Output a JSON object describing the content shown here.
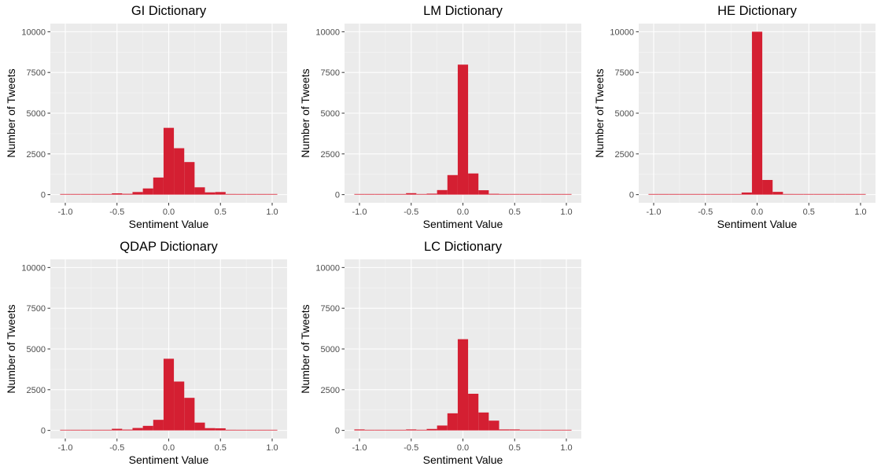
{
  "chart_data": [
    {
      "type": "bar",
      "title": "GI Dictionary",
      "xlabel": "Sentiment Value",
      "ylabel": "Number of Tweets",
      "xlim": [
        -1.0,
        1.0
      ],
      "ylim": [
        0,
        10000
      ],
      "xticks": [
        "-1.0",
        "-0.5",
        "0.0",
        "0.5",
        "1.0"
      ],
      "yticks": [
        "0",
        "2500",
        "5000",
        "7500",
        "10000"
      ],
      "bin_width": 0.1,
      "bins": [
        -1.0,
        -0.9,
        -0.8,
        -0.7,
        -0.6,
        -0.5,
        -0.4,
        -0.3,
        -0.2,
        -0.1,
        0.0,
        0.1,
        0.2,
        0.3,
        0.4,
        0.5,
        0.6,
        0.7,
        0.8,
        0.9,
        1.0
      ],
      "values": [
        20,
        5,
        5,
        10,
        20,
        80,
        50,
        160,
        380,
        1050,
        4100,
        2850,
        2000,
        450,
        140,
        160,
        40,
        15,
        10,
        10,
        30
      ],
      "grid": true,
      "color": "#D41F32"
    },
    {
      "type": "bar",
      "title": "LM Dictionary",
      "xlabel": "Sentiment Value",
      "ylabel": "Number of Tweets",
      "xlim": [
        -1.0,
        1.0
      ],
      "ylim": [
        0,
        10000
      ],
      "xticks": [
        "-1.0",
        "-0.5",
        "0.0",
        "0.5",
        "1.0"
      ],
      "yticks": [
        "0",
        "2500",
        "5000",
        "7500",
        "10000"
      ],
      "bin_width": 0.1,
      "bins": [
        -1.0,
        -0.9,
        -0.8,
        -0.7,
        -0.6,
        -0.5,
        -0.4,
        -0.3,
        -0.2,
        -0.1,
        0.0,
        0.1,
        0.2,
        0.3,
        0.4,
        0.5,
        0.6,
        0.7,
        0.8,
        0.9,
        1.0
      ],
      "values": [
        10,
        5,
        5,
        5,
        10,
        90,
        30,
        60,
        280,
        1200,
        7980,
        1300,
        270,
        50,
        20,
        40,
        15,
        5,
        5,
        5,
        10
      ],
      "grid": true,
      "color": "#D41F32"
    },
    {
      "type": "bar",
      "title": "HE Dictionary",
      "xlabel": "Sentiment Value",
      "ylabel": "Number of Tweets",
      "xlim": [
        -1.0,
        1.0
      ],
      "ylim": [
        0,
        10000
      ],
      "xticks": [
        "-1.0",
        "-0.5",
        "0.0",
        "0.5",
        "1.0"
      ],
      "yticks": [
        "0",
        "2500",
        "5000",
        "7500",
        "10000"
      ],
      "bin_width": 0.1,
      "bins": [
        -1.0,
        -0.9,
        -0.8,
        -0.7,
        -0.6,
        -0.5,
        -0.4,
        -0.3,
        -0.2,
        -0.1,
        0.0,
        0.1,
        0.2,
        0.3,
        0.4,
        0.5,
        0.6,
        0.7,
        0.8,
        0.9,
        1.0
      ],
      "values": [
        5,
        5,
        5,
        5,
        5,
        10,
        5,
        10,
        20,
        130,
        10000,
        900,
        170,
        40,
        10,
        15,
        5,
        5,
        5,
        5,
        5
      ],
      "grid": true,
      "color": "#D41F32"
    },
    {
      "type": "bar",
      "title": "QDAP Dictionary",
      "xlabel": "Sentiment Value",
      "ylabel": "Number of Tweets",
      "xlim": [
        -1.0,
        1.0
      ],
      "ylim": [
        0,
        10000
      ],
      "xticks": [
        "-1.0",
        "-0.5",
        "0.0",
        "0.5",
        "1.0"
      ],
      "yticks": [
        "0",
        "2500",
        "5000",
        "7500",
        "10000"
      ],
      "bin_width": 0.1,
      "bins": [
        -1.0,
        -0.9,
        -0.8,
        -0.7,
        -0.6,
        -0.5,
        -0.4,
        -0.3,
        -0.2,
        -0.1,
        0.0,
        0.1,
        0.2,
        0.3,
        0.4,
        0.5,
        0.6,
        0.7,
        0.8,
        0.9,
        1.0
      ],
      "values": [
        20,
        5,
        5,
        10,
        20,
        100,
        50,
        150,
        280,
        650,
        4400,
        3000,
        2000,
        480,
        140,
        130,
        40,
        20,
        10,
        10,
        20
      ],
      "grid": true,
      "color": "#D41F32"
    },
    {
      "type": "bar",
      "title": "LC Dictionary",
      "xlabel": "Sentiment Value",
      "ylabel": "Number of Tweets",
      "xlim": [
        -1.0,
        1.0
      ],
      "ylim": [
        0,
        10000
      ],
      "xticks": [
        "-1.0",
        "-0.5",
        "0.0",
        "0.5",
        "1.0"
      ],
      "yticks": [
        "0",
        "2500",
        "5000",
        "7500",
        "10000"
      ],
      "bin_width": 0.1,
      "bins": [
        -1.0,
        -0.9,
        -0.8,
        -0.7,
        -0.6,
        -0.5,
        -0.4,
        -0.3,
        -0.2,
        -0.1,
        0.0,
        0.1,
        0.2,
        0.3,
        0.4,
        0.5,
        0.6,
        0.7,
        0.8,
        0.9,
        1.0
      ],
      "values": [
        60,
        10,
        10,
        20,
        30,
        60,
        40,
        90,
        300,
        1050,
        5600,
        2250,
        1100,
        600,
        60,
        60,
        20,
        20,
        10,
        10,
        20
      ],
      "grid": true,
      "color": "#D41F32"
    }
  ]
}
